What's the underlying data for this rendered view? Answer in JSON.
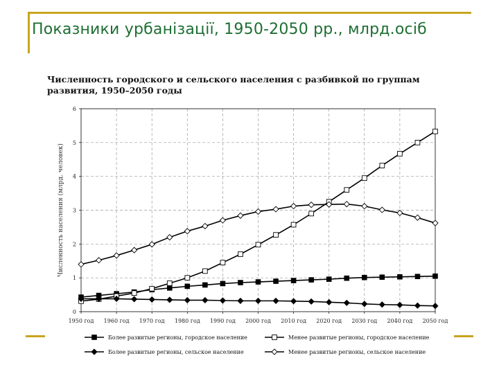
{
  "slide": {
    "title": "Показники урбанізації, 1950-2050 рр., млрд.осіб"
  },
  "chart_data": {
    "type": "line",
    "title_lines": [
      "Численность городского и сельского населения с разбивкой по группам",
      "развития, 1950–2050 годы"
    ],
    "ylabel": "Численность населения (млрд. человек)",
    "xlabel": "",
    "x": [
      1950,
      1955,
      1960,
      1965,
      1970,
      1975,
      1980,
      1985,
      1990,
      1995,
      2000,
      2005,
      2010,
      2015,
      2020,
      2025,
      2030,
      2035,
      2040,
      2045,
      2050
    ],
    "x_ticks": [
      1950,
      1960,
      1970,
      1980,
      1990,
      2000,
      2010,
      2020,
      2030,
      2040,
      2050
    ],
    "x_tick_labels": [
      "1950 год",
      "1960 год",
      "1970 год",
      "1980 год",
      "1990 год",
      "2000 год",
      "2010 год",
      "2020 год",
      "2030 год",
      "2040 год",
      "2050 год"
    ],
    "xlim": [
      1950,
      2050
    ],
    "ylim": [
      0,
      6
    ],
    "y_ticks": [
      0,
      1,
      2,
      3,
      4,
      5,
      6
    ],
    "grid": true,
    "legend_position": "bottom",
    "series": [
      {
        "name": "Более развитые регионы, городское население",
        "marker": "filled-square",
        "values": [
          0.43,
          0.48,
          0.53,
          0.58,
          0.65,
          0.7,
          0.75,
          0.79,
          0.83,
          0.86,
          0.88,
          0.9,
          0.92,
          0.94,
          0.96,
          0.99,
          1.01,
          1.02,
          1.03,
          1.04,
          1.05
        ]
      },
      {
        "name": "Менее развитые регионы, городское население",
        "marker": "open-square",
        "values": [
          0.31,
          0.37,
          0.46,
          0.55,
          0.68,
          0.84,
          1.0,
          1.2,
          1.45,
          1.7,
          1.98,
          2.27,
          2.57,
          2.9,
          3.25,
          3.6,
          3.95,
          4.32,
          4.67,
          5.0,
          5.33
        ]
      },
      {
        "name": "Более развитые регионы, сельское население",
        "marker": "filled-diamond",
        "values": [
          0.38,
          0.38,
          0.38,
          0.37,
          0.36,
          0.35,
          0.34,
          0.34,
          0.33,
          0.32,
          0.32,
          0.32,
          0.31,
          0.3,
          0.28,
          0.26,
          0.23,
          0.21,
          0.2,
          0.18,
          0.17
        ]
      },
      {
        "name": "Менее развитые регионы, сельское население",
        "marker": "open-diamond",
        "values": [
          1.4,
          1.52,
          1.66,
          1.82,
          1.99,
          2.2,
          2.38,
          2.53,
          2.7,
          2.84,
          2.96,
          3.03,
          3.12,
          3.16,
          3.17,
          3.18,
          3.12,
          3.01,
          2.92,
          2.78,
          2.62
        ]
      }
    ],
    "colors": {
      "line": "#000000",
      "grid": "#9a9a9a"
    }
  }
}
